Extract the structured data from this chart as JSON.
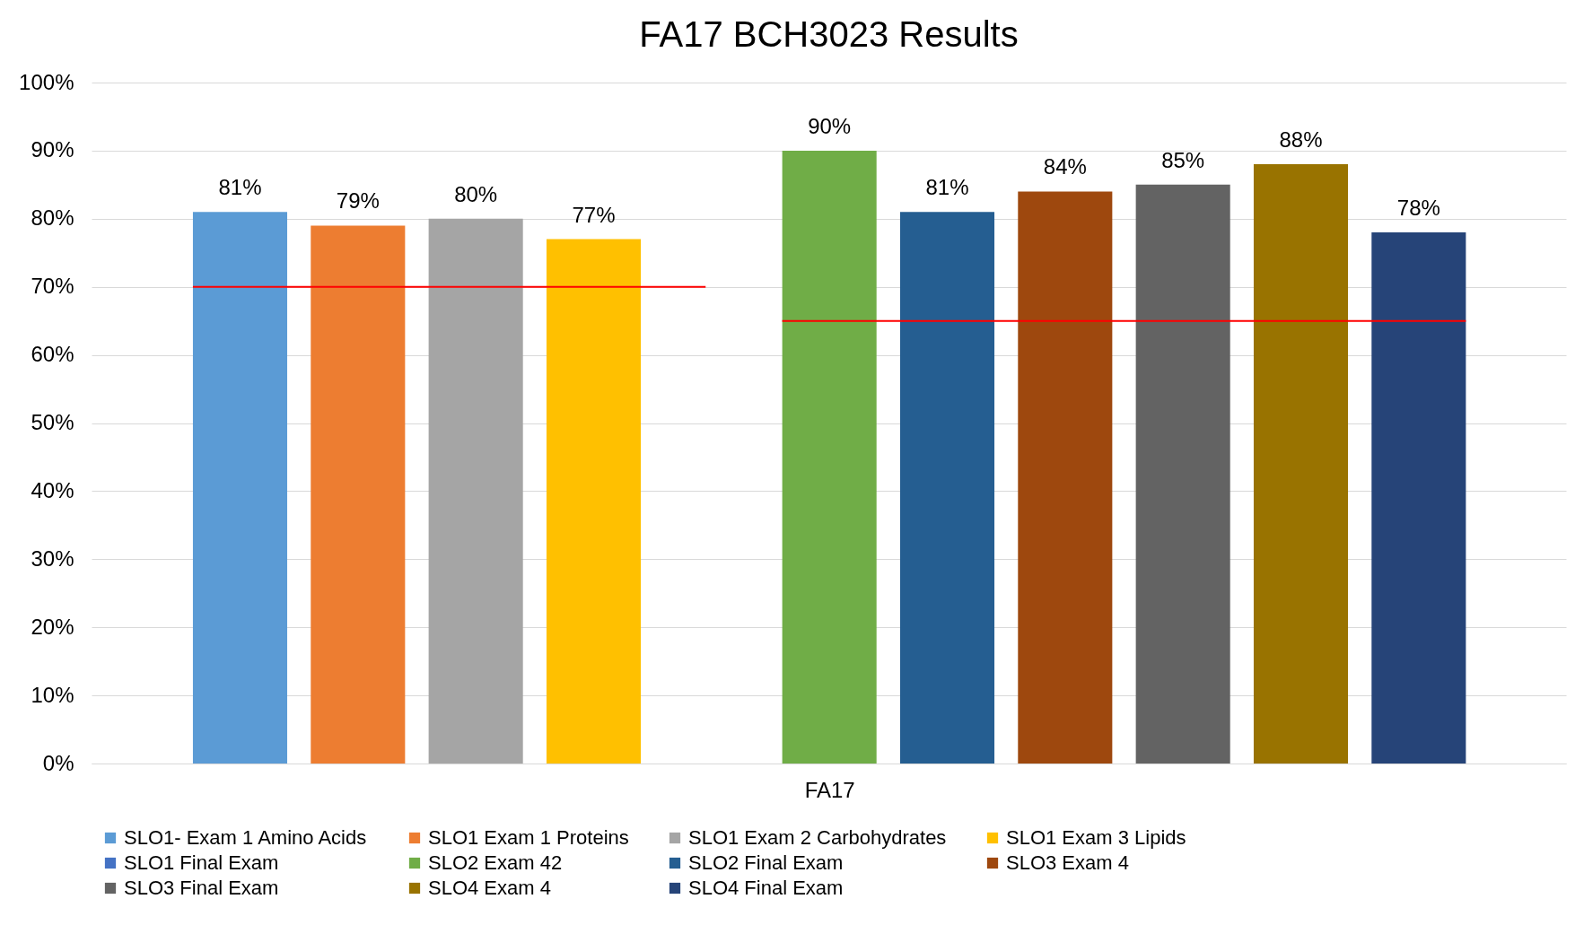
{
  "chart_data": {
    "type": "bar",
    "title": "FA17 BCH3023 Results",
    "categories": [
      "FA17"
    ],
    "series": [
      {
        "name": "SLO1- Exam 1 Amino Acids",
        "color": "#5b9bd5",
        "values": [
          81
        ]
      },
      {
        "name": "SLO1 Exam 1 Proteins",
        "color": "#ed7d31",
        "values": [
          79
        ]
      },
      {
        "name": "SLO1 Exam 2 Carbohydrates",
        "color": "#a5a5a5",
        "values": [
          80
        ]
      },
      {
        "name": "SLO1 Exam 3 Lipids",
        "color": "#ffc000",
        "values": [
          77
        ]
      },
      {
        "name": "SLO1 Final Exam",
        "color": "#4472c4",
        "values": [
          null
        ]
      },
      {
        "name": "SLO2 Exam 42",
        "color": "#70ad47",
        "values": [
          90
        ]
      },
      {
        "name": "SLO2 Final Exam",
        "color": "#255e91",
        "values": [
          81
        ]
      },
      {
        "name": "SLO3 Exam 4",
        "color": "#9e480e",
        "values": [
          84
        ]
      },
      {
        "name": "SLO3 Final Exam",
        "color": "#636363",
        "values": [
          85
        ]
      },
      {
        "name": "SLO4 Exam 4",
        "color": "#997300",
        "values": [
          88
        ]
      },
      {
        "name": "SLO4 Final Exam",
        "color": "#264478",
        "values": [
          78
        ]
      }
    ],
    "value_labels": [
      "81%",
      "79%",
      "80%",
      "77%",
      null,
      "90%",
      "81%",
      "84%",
      "85%",
      "88%",
      "78%"
    ],
    "ylim": [
      0,
      100
    ],
    "yticks": [
      {
        "value": 0,
        "label": "0%"
      },
      {
        "value": 10,
        "label": "10%"
      },
      {
        "value": 20,
        "label": "20%"
      },
      {
        "value": 30,
        "label": "30%"
      },
      {
        "value": 40,
        "label": "40%"
      },
      {
        "value": 50,
        "label": "50%"
      },
      {
        "value": 60,
        "label": "60%"
      },
      {
        "value": 70,
        "label": "70%"
      },
      {
        "value": 80,
        "label": "80%"
      },
      {
        "value": 90,
        "label": "90%"
      },
      {
        "value": 100,
        "label": "100%"
      }
    ],
    "ref_lines": [
      {
        "axis": "y",
        "value": 70,
        "color": "#ff0000"
      },
      {
        "axis": "y",
        "value": 65,
        "color": "#ff0000"
      }
    ],
    "grid": "y",
    "legend": "bottom"
  }
}
